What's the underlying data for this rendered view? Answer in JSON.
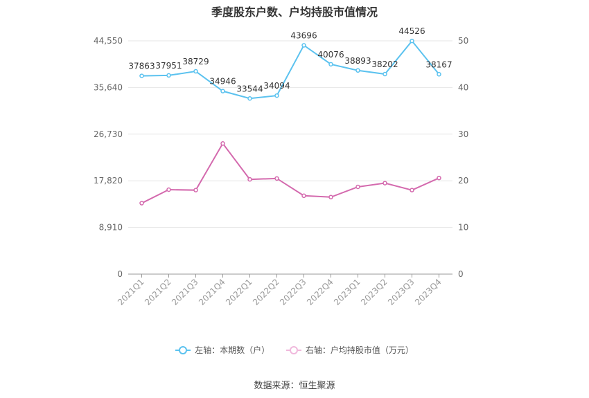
{
  "title": "季度股东户数、户均持股市值情况",
  "source": "数据来源：恒生聚源",
  "legend": {
    "left": "左轴：本期数（户）",
    "right": "右轴：户均持股市值（万元）"
  },
  "colors": {
    "left_series": "#5bc2ef",
    "right_series": "#d46aae",
    "grid": "#e6e6e6",
    "axis_text": "#666666"
  },
  "chart_data": {
    "type": "line",
    "categories": [
      "2021Q1",
      "2021Q2",
      "2021Q3",
      "2021Q4",
      "2022Q1",
      "2022Q2",
      "2022Q3",
      "2022Q4",
      "2023Q1",
      "2023Q2",
      "2023Q3",
      "2023Q4"
    ],
    "series": [
      {
        "name": "左轴：本期数（户）",
        "axis": "left",
        "values": [
          37863,
          37951,
          38729,
          34946,
          33544,
          34094,
          43696,
          40076,
          38893,
          38202,
          44526,
          38167
        ],
        "labels_shown": true
      },
      {
        "name": "右轴：户均持股市值（万元）",
        "axis": "right",
        "values": [
          15.2,
          18.1,
          18.0,
          28.0,
          20.3,
          20.5,
          16.8,
          16.5,
          18.7,
          19.5,
          18.0,
          20.6
        ],
        "labels_shown": false
      }
    ],
    "left_axis": {
      "ticks": [
        "0",
        "8,910",
        "17,820",
        "26,730",
        "35,640",
        "44,550"
      ],
      "min": 0,
      "max": 44550
    },
    "right_axis": {
      "ticks": [
        "0",
        "10",
        "20",
        "30",
        "40",
        "50"
      ],
      "min": 0,
      "max": 50
    },
    "grid": true,
    "legend_position": "bottom"
  }
}
